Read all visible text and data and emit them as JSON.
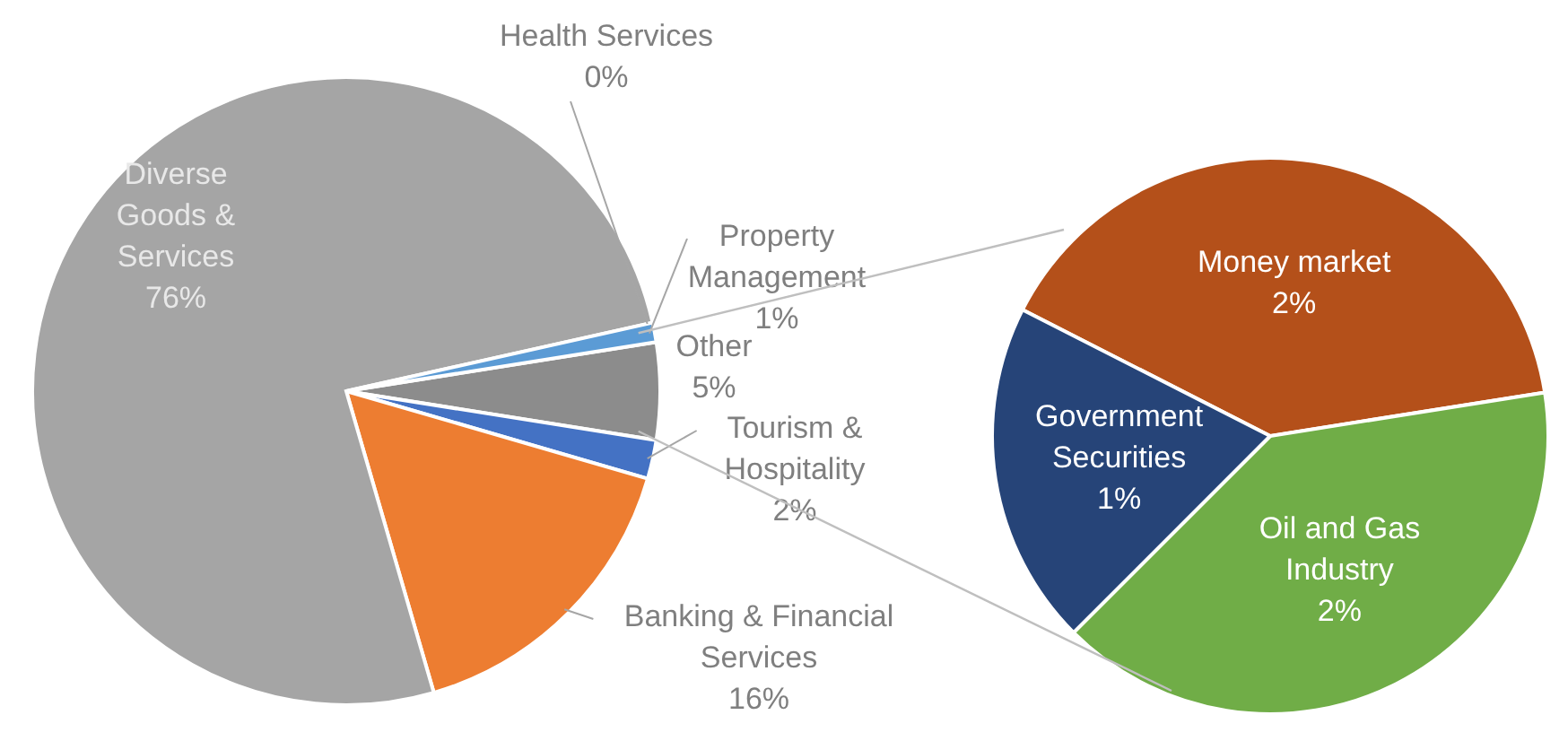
{
  "chart_data": [
    {
      "type": "pie",
      "categories": [
        "Other",
        "Tourism & Hospitality",
        "Banking & Financial Services",
        "Diverse Goods & Services",
        "Health Services",
        "Property Management"
      ],
      "values": [
        5,
        2,
        16,
        76,
        0,
        1
      ],
      "colors": [
        "#8c8c8c",
        "#4472c4",
        "#ed7d31",
        "#a5a5a5",
        "#2f5597",
        "#5b9bd5"
      ],
      "value_labels": [
        "5%",
        "2%",
        "16%",
        "76%",
        "0%",
        "1%"
      ],
      "legend": false
    },
    {
      "type": "pie",
      "categories": [
        "Money market",
        "Oil and Gas Industry",
        "Government Securities"
      ],
      "values": [
        2,
        2,
        1
      ],
      "colors": [
        "#b4501a",
        "#70ad47",
        "#264478"
      ],
      "value_labels": [
        "2%",
        "2%",
        "1%"
      ],
      "legend": false
    }
  ]
}
